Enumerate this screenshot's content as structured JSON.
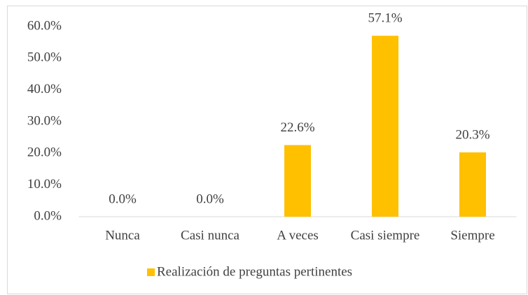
{
  "chart_data": {
    "type": "bar",
    "categories": [
      "Nunca",
      "Casi nunca",
      "A veces",
      "Casi siempre",
      "Siempre"
    ],
    "series": [
      {
        "name": "Realización de preguntas pertinentes",
        "color": "#ffc000",
        "values": [
          0,
          0,
          22.6,
          57.1,
          20.3
        ],
        "value_labels": [
          "0.0%",
          "0.0%",
          "22.6%",
          "57.1%",
          "20.3%"
        ]
      }
    ],
    "ylim": [
      0,
      60
    ],
    "yticks": [
      {
        "value": 0,
        "label": "0.0%"
      },
      {
        "value": 10,
        "label": "10.0%"
      },
      {
        "value": 20,
        "label": "20.0%"
      },
      {
        "value": 30,
        "label": "30.0%"
      },
      {
        "value": 40,
        "label": "40.0%"
      },
      {
        "value": 50,
        "label": "50.0%"
      },
      {
        "value": 60,
        "label": "60.0%"
      }
    ],
    "grid": false,
    "legend": "bottom"
  }
}
